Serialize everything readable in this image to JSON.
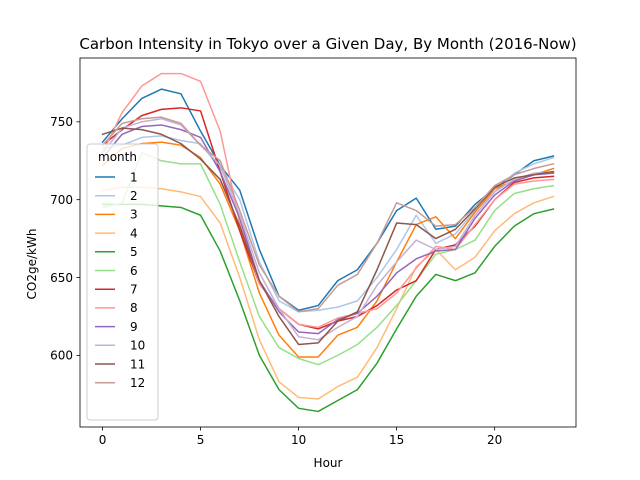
{
  "chart_data": {
    "type": "line",
    "title": "Carbon Intensity in Tokyo over a Given Day, By Month (2016-Now)",
    "xlabel": "Hour",
    "ylabel": "CO2ge/kWh",
    "xlim": [
      -1.15,
      24.15
    ],
    "ylim": [
      554,
      791
    ],
    "xticks": [
      0,
      5,
      10,
      15,
      20
    ],
    "yticks": [
      600,
      650,
      700,
      750
    ],
    "grid": false,
    "legend_title": "month",
    "legend_position": "lower-left",
    "x": [
      0,
      1,
      2,
      3,
      4,
      5,
      6,
      7,
      8,
      9,
      10,
      11,
      12,
      13,
      14,
      15,
      16,
      17,
      18,
      19,
      20,
      21,
      22,
      23
    ],
    "series": [
      {
        "name": "1",
        "color": "#1f77b4",
        "values": [
          737,
          752,
          765,
          771,
          768,
          744,
          722,
          706,
          668,
          638,
          629,
          632,
          648,
          655,
          672,
          693,
          701,
          681,
          683,
          697,
          707,
          716,
          725,
          728
        ]
      },
      {
        "name": "2",
        "color": "#aec7e8",
        "values": [
          733,
          735,
          740,
          741,
          738,
          736,
          720,
          700,
          660,
          635,
          628,
          629,
          631,
          635,
          650,
          668,
          690,
          672,
          678,
          693,
          705,
          717,
          723,
          727
        ]
      },
      {
        "name": "3",
        "color": "#ff7f0e",
        "values": [
          722,
          733,
          736,
          737,
          735,
          727,
          710,
          680,
          640,
          613,
          599,
          599,
          613,
          618,
          635,
          660,
          684,
          689,
          675,
          692,
          707,
          712,
          716,
          720
        ]
      },
      {
        "name": "4",
        "color": "#ffbb78",
        "values": [
          706,
          708,
          708,
          707,
          705,
          702,
          685,
          650,
          610,
          583,
          573,
          572,
          580,
          586,
          605,
          630,
          657,
          668,
          655,
          663,
          680,
          691,
          698,
          702
        ]
      },
      {
        "name": "5",
        "color": "#2ca02c",
        "values": [
          697,
          697,
          697,
          696,
          695,
          690,
          667,
          635,
          600,
          578,
          566,
          564,
          571,
          578,
          595,
          617,
          638,
          652,
          648,
          653,
          670,
          683,
          691,
          694
        ]
      },
      {
        "name": "6",
        "color": "#98df8a",
        "values": [
          695,
          698,
          730,
          725,
          723,
          723,
          697,
          660,
          625,
          605,
          598,
          594,
          600,
          607,
          618,
          632,
          648,
          665,
          668,
          674,
          693,
          704,
          707,
          709
        ]
      },
      {
        "name": "7",
        "color": "#d62728",
        "values": [
          735,
          745,
          754,
          758,
          759,
          757,
          718,
          680,
          646,
          630,
          620,
          617,
          622,
          625,
          632,
          642,
          648,
          668,
          671,
          683,
          700,
          711,
          714,
          715
        ]
      },
      {
        "name": "8",
        "color": "#ff9896",
        "values": [
          730,
          756,
          773,
          781,
          781,
          776,
          744,
          685,
          646,
          630,
          620,
          618,
          624,
          627,
          630,
          640,
          656,
          670,
          668,
          684,
          700,
          710,
          712,
          713
        ]
      },
      {
        "name": "9",
        "color": "#9467bd",
        "values": [
          727,
          742,
          747,
          748,
          745,
          740,
          718,
          688,
          648,
          628,
          615,
          614,
          623,
          627,
          638,
          653,
          662,
          667,
          668,
          688,
          703,
          712,
          716,
          717
        ]
      },
      {
        "name": "10",
        "color": "#c5b0d5",
        "values": [
          730,
          746,
          750,
          752,
          748,
          735,
          722,
          690,
          653,
          630,
          612,
          610,
          618,
          625,
          645,
          660,
          674,
          668,
          670,
          690,
          705,
          713,
          717,
          718
        ]
      },
      {
        "name": "11",
        "color": "#8c564b",
        "values": [
          742,
          746,
          745,
          742,
          736,
          726,
          713,
          683,
          648,
          625,
          607,
          608,
          622,
          628,
          655,
          685,
          684,
          675,
          681,
          694,
          708,
          714,
          716,
          718
        ]
      },
      {
        "name": "12",
        "color": "#c49c94",
        "values": [
          735,
          749,
          752,
          753,
          749,
          735,
          725,
          693,
          658,
          638,
          628,
          630,
          645,
          652,
          672,
          698,
          693,
          683,
          684,
          695,
          709,
          716,
          720,
          723
        ]
      }
    ]
  }
}
